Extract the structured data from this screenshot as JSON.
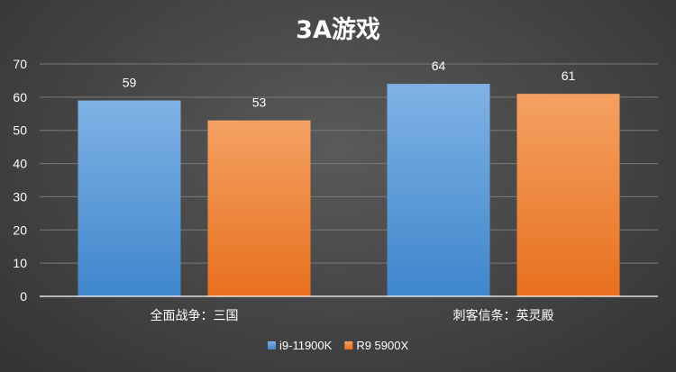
{
  "chart_data": {
    "type": "bar",
    "title": "3A游戏",
    "categories": [
      "全面战争：三国",
      "刺客信条：英灵殿"
    ],
    "series": [
      {
        "name": "i9-11900K",
        "values": [
          59,
          64
        ],
        "color": "#5b9bd5"
      },
      {
        "name": "R9 5900X",
        "values": [
          53,
          61
        ],
        "color": "#ed7d31"
      }
    ],
    "ylim": [
      0,
      70
    ],
    "yticks": [
      0,
      10,
      20,
      30,
      40,
      50,
      60,
      70
    ],
    "grid": true,
    "legend": "bottom"
  }
}
